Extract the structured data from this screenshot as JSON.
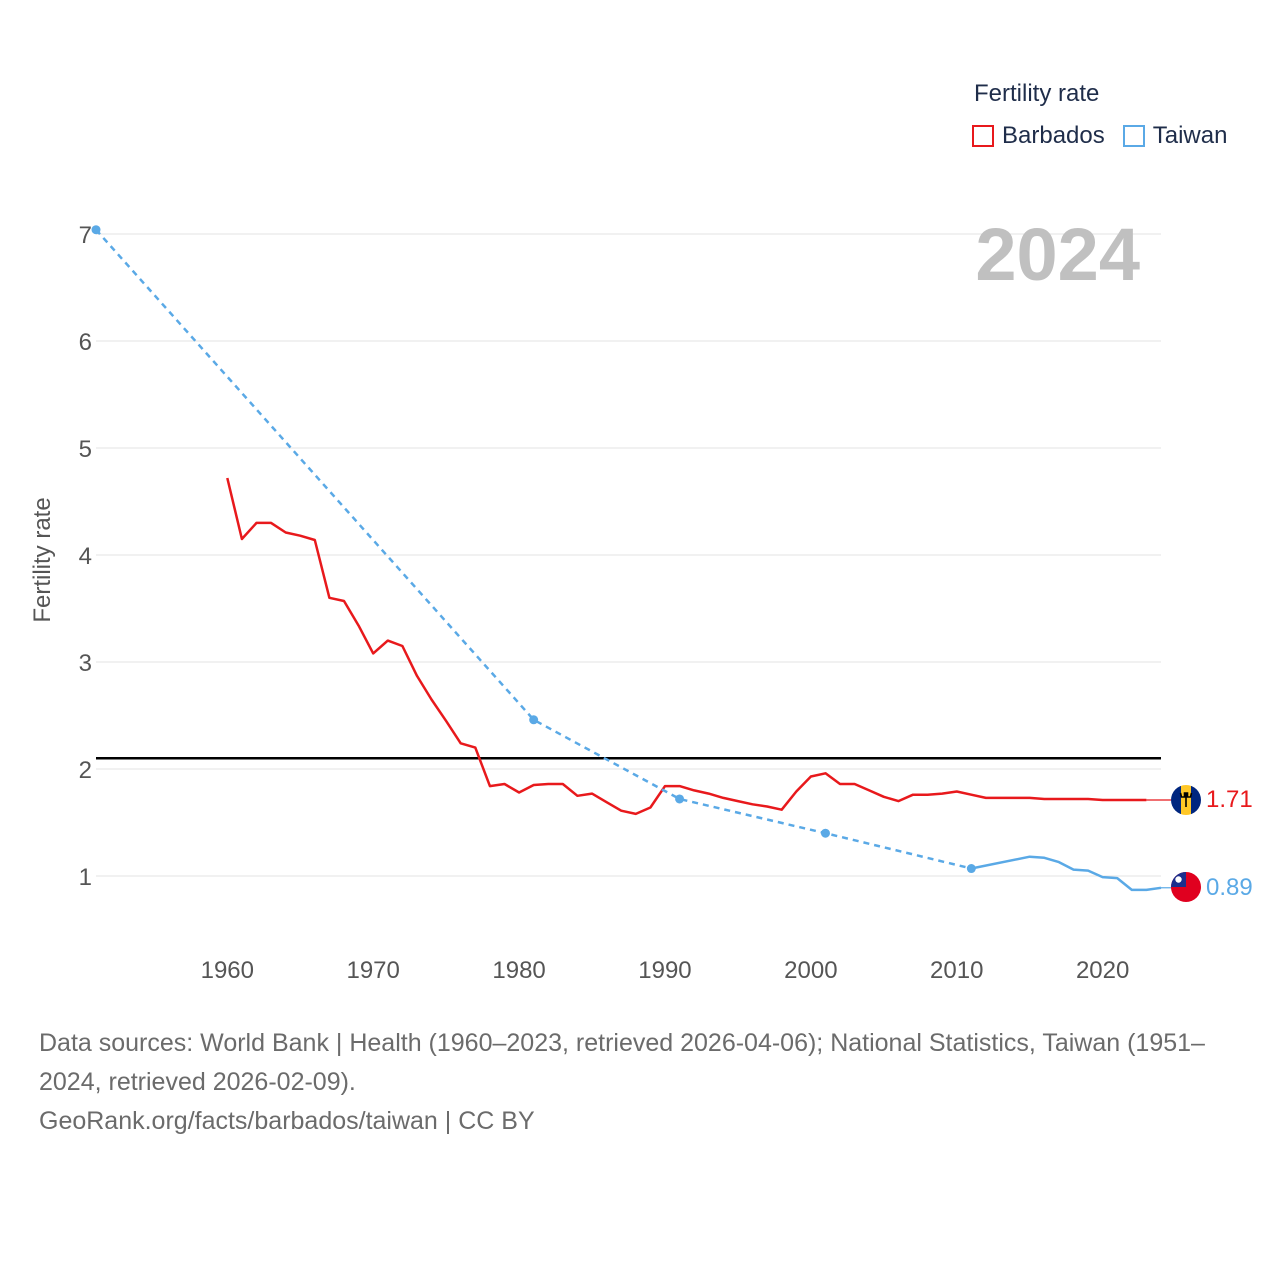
{
  "legend": {
    "title": "Fertility rate",
    "items": [
      {
        "label": "Barbados",
        "color": "#e8191c"
      },
      {
        "label": "Taiwan",
        "color": "#5aa9e6"
      }
    ]
  },
  "year_label": "2024",
  "chart_data": {
    "type": "line",
    "title": "Fertility rate",
    "xlabel": "",
    "ylabel": "Fertility rate",
    "xlim": [
      1951,
      2024
    ],
    "ylim": [
      0.6,
      7.1
    ],
    "x_ticks": [
      1960,
      1970,
      1980,
      1990,
      2000,
      2010,
      2020
    ],
    "y_ticks": [
      1,
      2,
      3,
      4,
      5,
      6,
      7
    ],
    "grid": true,
    "reference_line": {
      "y": 2.1,
      "color": "#000000"
    },
    "series": [
      {
        "name": "Barbados",
        "color": "#e8191c",
        "end_label": "1.71",
        "points": [
          [
            1960,
            4.72
          ],
          [
            1961,
            4.15
          ],
          [
            1962,
            4.3
          ],
          [
            1963,
            4.3
          ],
          [
            1964,
            4.21
          ],
          [
            1965,
            4.18
          ],
          [
            1966,
            4.14
          ],
          [
            1967,
            3.6
          ],
          [
            1968,
            3.57
          ],
          [
            1969,
            3.34
          ],
          [
            1970,
            3.08
          ],
          [
            1971,
            3.2
          ],
          [
            1972,
            3.15
          ],
          [
            1973,
            2.87
          ],
          [
            1974,
            2.65
          ],
          [
            1975,
            2.45
          ],
          [
            1976,
            2.24
          ],
          [
            1977,
            2.2
          ],
          [
            1978,
            1.84
          ],
          [
            1979,
            1.86
          ],
          [
            1980,
            1.78
          ],
          [
            1981,
            1.85
          ],
          [
            1982,
            1.86
          ],
          [
            1983,
            1.86
          ],
          [
            1984,
            1.75
          ],
          [
            1985,
            1.77
          ],
          [
            1986,
            1.69
          ],
          [
            1987,
            1.61
          ],
          [
            1988,
            1.58
          ],
          [
            1989,
            1.64
          ],
          [
            1990,
            1.84
          ],
          [
            1991,
            1.84
          ],
          [
            1992,
            1.8
          ],
          [
            1993,
            1.77
          ],
          [
            1994,
            1.73
          ],
          [
            1995,
            1.7
          ],
          [
            1996,
            1.67
          ],
          [
            1997,
            1.65
          ],
          [
            1998,
            1.62
          ],
          [
            1999,
            1.79
          ],
          [
            2000,
            1.93
          ],
          [
            2001,
            1.96
          ],
          [
            2002,
            1.86
          ],
          [
            2003,
            1.86
          ],
          [
            2004,
            1.8
          ],
          [
            2005,
            1.74
          ],
          [
            2006,
            1.7
          ],
          [
            2007,
            1.76
          ],
          [
            2008,
            1.76
          ],
          [
            2009,
            1.77
          ],
          [
            2010,
            1.79
          ],
          [
            2011,
            1.76
          ],
          [
            2012,
            1.73
          ],
          [
            2013,
            1.73
          ],
          [
            2014,
            1.73
          ],
          [
            2015,
            1.73
          ],
          [
            2016,
            1.72
          ],
          [
            2017,
            1.72
          ],
          [
            2018,
            1.72
          ],
          [
            2019,
            1.72
          ],
          [
            2020,
            1.71
          ],
          [
            2021,
            1.71
          ],
          [
            2022,
            1.71
          ],
          [
            2023,
            1.71
          ]
        ]
      },
      {
        "name": "Taiwan",
        "color": "#5aa9e6",
        "end_label": "0.89",
        "markers": [
          [
            1951,
            7.04
          ],
          [
            1981,
            2.46
          ],
          [
            1991,
            1.72
          ],
          [
            2001,
            1.4
          ],
          [
            2011,
            1.07
          ]
        ],
        "points": [
          [
            1951,
            7.04
          ],
          [
            1981,
            2.46
          ],
          [
            1991,
            1.72
          ],
          [
            2001,
            1.4
          ],
          [
            2011,
            1.07
          ],
          [
            2015,
            1.18
          ],
          [
            2016,
            1.17
          ],
          [
            2017,
            1.13
          ],
          [
            2018,
            1.06
          ],
          [
            2019,
            1.05
          ],
          [
            2020,
            0.99
          ],
          [
            2021,
            0.98
          ],
          [
            2022,
            0.87
          ],
          [
            2023,
            0.87
          ],
          [
            2024,
            0.89
          ]
        ]
      }
    ]
  },
  "footer": {
    "sources": "Data sources: World Bank | Health (1960–2023, retrieved 2026-04-06); National Statistics, Taiwan (1951–2024, retrieved 2026-02-09).",
    "credit": "GeoRank.org/facts/barbados/taiwan | CC BY"
  }
}
